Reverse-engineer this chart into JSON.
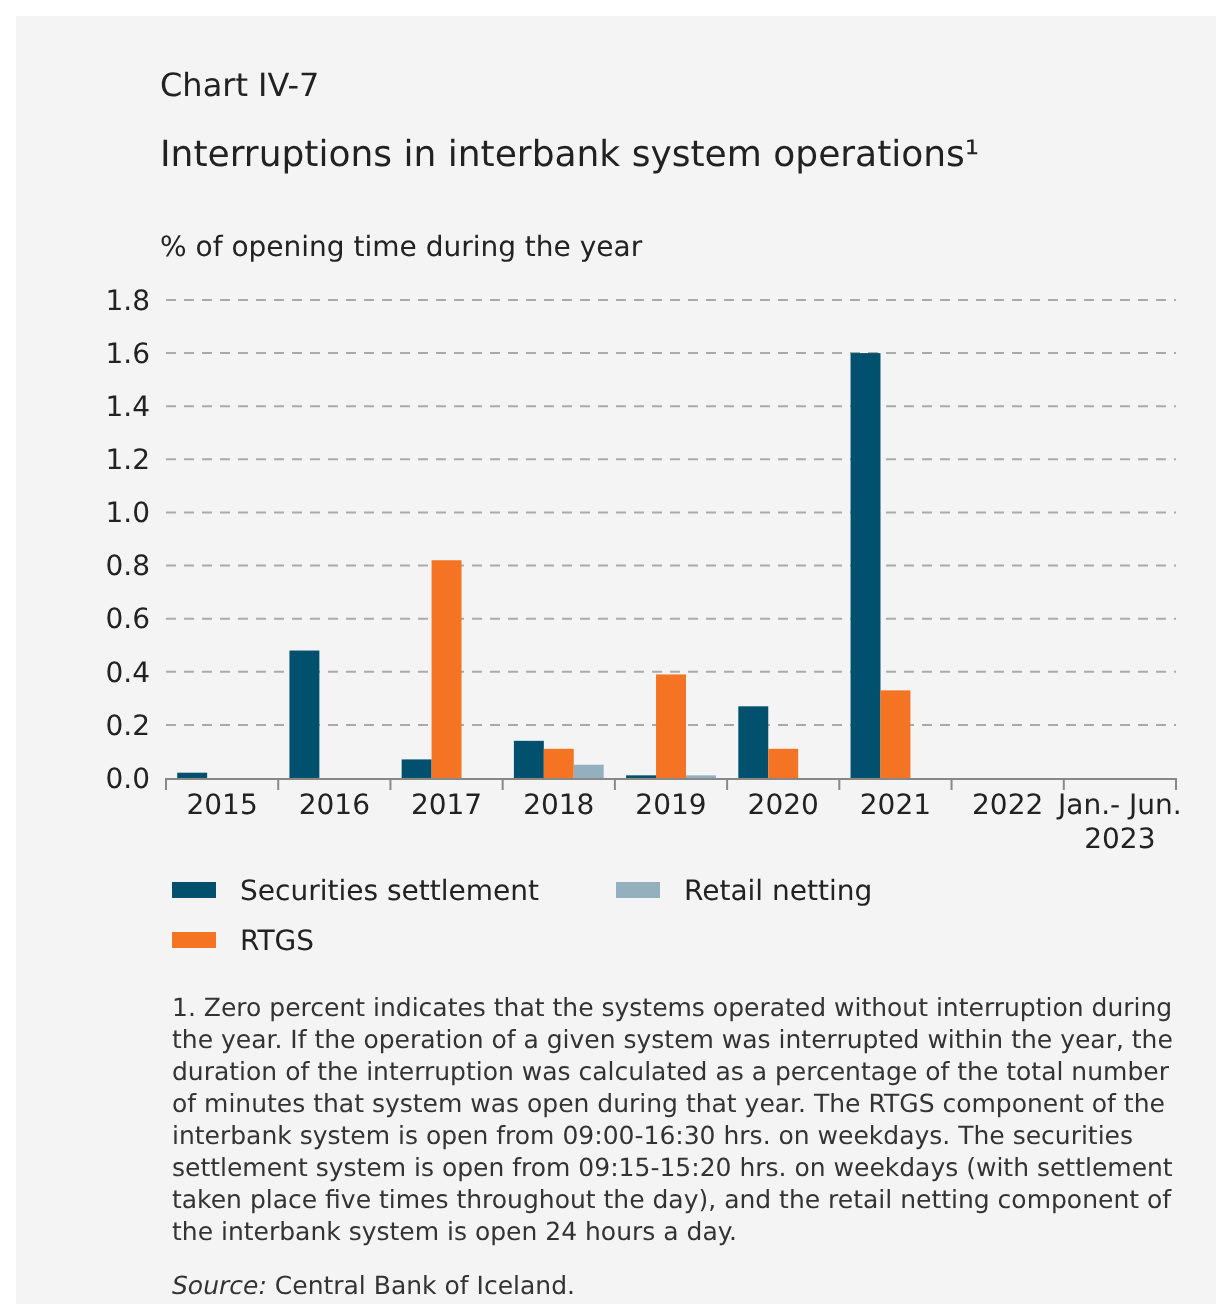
{
  "chart_data": {
    "type": "bar",
    "title": "Chart IV-7",
    "subtitle": "Interruptions in interbank system operations¹",
    "ylabel": "% of opening time during the year",
    "categories": [
      "2015",
      "2016",
      "2017",
      "2018",
      "2019",
      "2020",
      "2021",
      "2022",
      "Jan.- Jun.\n2023"
    ],
    "series": [
      {
        "name": "Securities settlement",
        "color": "#00506e",
        "values": [
          0.02,
          0.48,
          0.07,
          0.14,
          0.01,
          0.27,
          1.6,
          0,
          0
        ]
      },
      {
        "name": "RTGS",
        "color": "#f47424",
        "values": [
          0,
          0,
          0.82,
          0.11,
          0.39,
          0.11,
          0.33,
          0,
          0
        ]
      },
      {
        "name": "Retail netting",
        "color": "#94afbd",
        "values": [
          0,
          0,
          0,
          0.05,
          0.01,
          0,
          0,
          0,
          0
        ]
      }
    ],
    "ylim": [
      0,
      1.8
    ],
    "yticks": [
      {
        "value": 0,
        "label": "0.0"
      },
      {
        "value": 0.2,
        "label": "0.2"
      },
      {
        "value": 0.4,
        "label": "0.4"
      },
      {
        "value": 0.6,
        "label": "0.6"
      },
      {
        "value": 0.8,
        "label": "0.8"
      },
      {
        "value": 1,
        "label": "1.0"
      },
      {
        "value": 1.2,
        "label": "1.2"
      },
      {
        "value": 1.4,
        "label": "1.4"
      },
      {
        "value": 1.6,
        "label": "1.6"
      },
      {
        "value": 1.8,
        "label": "1.8"
      }
    ],
    "grid": "y",
    "legend": "bottom",
    "annotations": [
      "1. Zero percent indicates that the systems operated without interruption during the year. If the operation of a given system was interrupted within the year, the duration of the interruption was calculated as a percentage of the total number of minutes that system was open during that year. The RTGS component of the interbank system is open from 09:00-16:30 hrs. on weekdays. The securities settlement system is open from 09:15-15:20 hrs. on weekdays (with settlement taken place five times throughout the day), and the retail netting component of the interbank system is open 24 hours a day.",
      "Source: Central Bank of Iceland."
    ]
  }
}
